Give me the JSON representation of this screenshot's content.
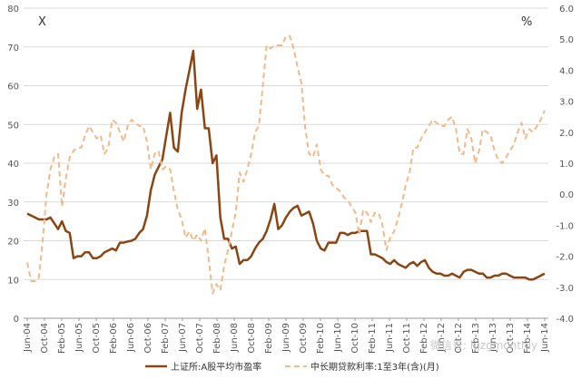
{
  "chart_data": {
    "type": "line",
    "left_axis": {
      "label": "X",
      "min": 0,
      "max": 80,
      "step": 10,
      "ticks": [
        "0",
        "10",
        "20",
        "30",
        "40",
        "50",
        "60",
        "70",
        "80"
      ]
    },
    "right_axis": {
      "label": "%",
      "min": -4.0,
      "max": 6.0,
      "step": 1.0,
      "ticks": [
        "-4.0",
        "-3.0",
        "-2.0",
        "-1.0",
        "0.0",
        "1.0",
        "2.0",
        "3.0",
        "4.0",
        "5.0",
        "6.0"
      ]
    },
    "x_tick_labels": [
      "Jun-04",
      "Oct-04",
      "Feb-05",
      "Jun-05",
      "Oct-05",
      "Feb-06",
      "Jun-06",
      "Oct-06",
      "Feb-07",
      "Jun-07",
      "Oct-07",
      "Feb-08",
      "Jun-08",
      "Oct-08",
      "Feb-09",
      "Jun-09",
      "Oct-09",
      "Feb-10",
      "Jun-10",
      "Oct-10",
      "Feb-11",
      "Jun-11",
      "Oct-11",
      "Feb-12",
      "Jun-12",
      "Oct-12",
      "Feb-13",
      "Jun-13",
      "Oct-13",
      "Feb-14",
      "Jun-14"
    ],
    "series": [
      {
        "name": "上证所:A股平均市盈率",
        "axis": "left",
        "color": "#8B4513",
        "values": [
          27,
          26.5,
          26,
          25.5,
          25.5,
          25.5,
          26,
          24.5,
          23,
          25,
          22.5,
          22,
          15.5,
          16,
          16,
          17,
          17,
          15.5,
          15.5,
          16,
          17,
          17.5,
          18,
          17.5,
          19.5,
          19.5,
          19.8,
          20,
          20.5,
          22,
          23,
          26.5,
          33,
          37,
          39,
          41,
          47,
          53,
          44,
          43,
          53,
          59,
          64,
          69,
          54,
          59,
          49,
          49,
          40,
          42,
          26,
          20.5,
          20.5,
          18,
          18.5,
          14,
          15,
          15,
          16,
          18,
          19.5,
          20.5,
          22.5,
          25.5,
          29.5,
          23,
          24,
          26,
          27.5,
          28.5,
          29,
          26.5,
          27,
          27.5,
          24.5,
          20,
          18,
          17.5,
          19.5,
          19.5,
          19.5,
          22,
          22,
          21.5,
          22,
          22,
          22.5,
          22.5,
          22.5,
          16.5,
          16.5,
          16,
          15.5,
          14.5,
          14,
          15,
          14,
          13.5,
          13,
          14,
          14.5,
          13.5,
          14.5,
          15,
          13,
          12,
          11.5,
          11.5,
          11,
          11,
          11.5,
          11,
          10.5,
          12,
          12.5,
          12.5,
          12,
          11.5,
          11.5,
          10.5,
          10.5,
          11,
          11,
          11.5,
          11.5,
          11,
          10.5,
          10.5,
          10.5,
          10.5,
          10,
          10,
          10.5,
          11,
          11.5
        ]
      },
      {
        "name": "中长期贷款利率:1至3年(含)(月)",
        "axis": "right",
        "color": "#F2B98A",
        "values": [
          -2.2,
          -2.8,
          -2.8,
          -2.7,
          -1.5,
          0,
          0.8,
          1.2,
          1.3,
          -0.4,
          0.5,
          1.2,
          1.4,
          1.5,
          1.5,
          1.9,
          2.2,
          2.0,
          1.8,
          1.9,
          1.3,
          1.5,
          2.4,
          2.3,
          2.0,
          1.7,
          2.2,
          2.4,
          2.3,
          2.2,
          2.2,
          1.7,
          0.8,
          1.3,
          1.4,
          0.8,
          0.9,
          0.8,
          0.1,
          -0.5,
          -0.8,
          -1.4,
          -1.2,
          -1.5,
          -1.3,
          -1.5,
          -1.1,
          -2.1,
          -3.2,
          -2.9,
          -3.1,
          -2.3,
          -1.8,
          -1.2,
          -0.6,
          0.7,
          0.4,
          0.8,
          1.3,
          2.0,
          2.2,
          3.5,
          4.8,
          4.7,
          4.8,
          4.8,
          4.8,
          5.1,
          5.1,
          4.7,
          4.1,
          3.6,
          2.1,
          1.3,
          1.2,
          1.6,
          0.8,
          0.6,
          0.6,
          0.3,
          0.2,
          0.1,
          -0.1,
          -0.2,
          -0.4,
          -0.6,
          -1.3,
          -0.5,
          -0.6,
          -0.9,
          -0.6,
          -0.6,
          -1.0,
          -1.8,
          -1.4,
          -1.2,
          -0.8,
          -0.3,
          0.3,
          0.7,
          1.5,
          1.5,
          1.8,
          2.0,
          2.2,
          2.4,
          2.3,
          2.2,
          2.2,
          2.4,
          2.5,
          2.1,
          1.3,
          1.3,
          2.1,
          1.8,
          1.0,
          1.4,
          2.1,
          2.0,
          1.9,
          1.4,
          1.1,
          1.0,
          1.2,
          1.4,
          1.6,
          2.0,
          2.3,
          1.8,
          2.1,
          2.0,
          2.2,
          2.4,
          2.7
        ]
      }
    ],
    "legend": {
      "position": "bottom"
    }
  },
  "watermark": {
    "text": "微信号: hjzgmonthly"
  }
}
